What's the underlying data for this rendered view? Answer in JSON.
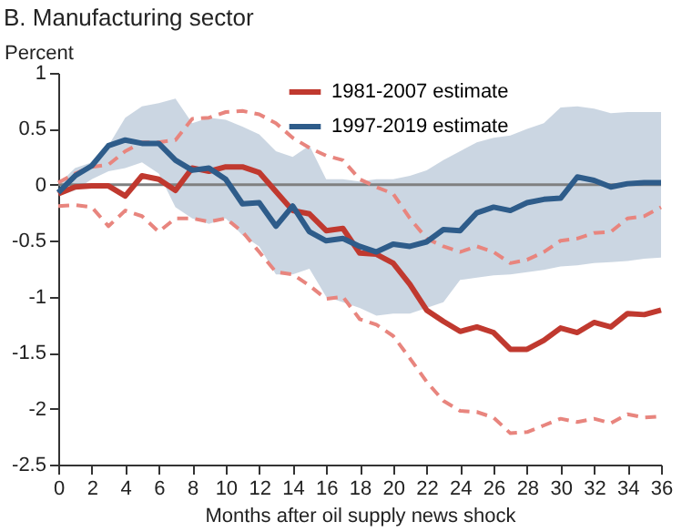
{
  "chart_data": {
    "type": "line",
    "title": "B. Manufacturing sector",
    "xlabel": "Months after oil supply news shock",
    "ylabel": "Percent",
    "x": [
      0,
      1,
      2,
      3,
      4,
      5,
      6,
      7,
      8,
      9,
      10,
      11,
      12,
      13,
      14,
      15,
      16,
      17,
      18,
      19,
      20,
      21,
      22,
      23,
      24,
      25,
      26,
      27,
      28,
      29,
      30,
      31,
      32,
      33,
      34,
      35,
      36
    ],
    "series": [
      {
        "color": "#e8857e",
        "line_style": "dashed",
        "values": [
          0.02,
          0.1,
          0.16,
          0.18,
          0.3,
          0.38,
          0.38,
          0.4,
          0.59,
          0.6,
          0.65,
          0.66,
          0.63,
          0.55,
          0.42,
          0.33,
          0.26,
          0.22,
          0.05,
          -0.02,
          -0.08,
          -0.3,
          -0.48,
          -0.55,
          -0.6,
          -0.55,
          -0.6,
          -0.7,
          -0.67,
          -0.6,
          -0.5,
          -0.48,
          -0.43,
          -0.42,
          -0.3,
          -0.28,
          -0.2
        ]
      },
      {
        "color": "#e8857e",
        "line_style": "dashed",
        "values": [
          -0.19,
          -0.18,
          -0.2,
          -0.37,
          -0.23,
          -0.28,
          -0.42,
          -0.3,
          -0.3,
          -0.33,
          -0.3,
          -0.42,
          -0.6,
          -0.78,
          -0.8,
          -0.9,
          -1.02,
          -1.0,
          -1.2,
          -1.25,
          -1.35,
          -1.55,
          -1.76,
          -1.93,
          -2.02,
          -2.03,
          -2.08,
          -2.22,
          -2.21,
          -2.15,
          -2.09,
          -2.12,
          -2.09,
          -2.13,
          -2.05,
          -2.08,
          -2.07
        ]
      },
      {
        "name": "1981-2007 estimate",
        "color": "#c0392f",
        "line_style": "solid",
        "values": [
          -0.08,
          -0.02,
          -0.01,
          -0.01,
          -0.1,
          0.08,
          0.05,
          -0.05,
          0.15,
          0.12,
          0.16,
          0.16,
          0.11,
          -0.06,
          -0.23,
          -0.26,
          -0.41,
          -0.39,
          -0.61,
          -0.62,
          -0.7,
          -0.89,
          -1.12,
          -1.22,
          -1.31,
          -1.27,
          -1.32,
          -1.47,
          -1.47,
          -1.39,
          -1.28,
          -1.32,
          -1.23,
          -1.27,
          -1.15,
          -1.16,
          -1.12
        ]
      },
      {
        "name": "1997-2019 estimate",
        "color": "#2e5c8a",
        "line_style": "solid",
        "values": [
          -0.07,
          0.08,
          0.17,
          0.35,
          0.4,
          0.37,
          0.37,
          0.22,
          0.13,
          0.15,
          0.05,
          -0.17,
          -0.16,
          -0.37,
          -0.19,
          -0.42,
          -0.5,
          -0.48,
          -0.55,
          -0.6,
          -0.53,
          -0.55,
          -0.51,
          -0.4,
          -0.41,
          -0.25,
          -0.2,
          -0.23,
          -0.16,
          -0.13,
          -0.12,
          0.07,
          0.04,
          -0.02,
          0.01,
          0.02,
          0.02
        ],
        "lower": [
          -0.1,
          -0.05,
          0.05,
          0.12,
          0.15,
          0.2,
          0.1,
          -0.2,
          -0.3,
          -0.35,
          -0.3,
          -0.45,
          -0.55,
          -0.8,
          -0.8,
          -0.75,
          -1.0,
          -1.05,
          -1.1,
          -1.17,
          -1.15,
          -1.15,
          -1.1,
          -1.05,
          -0.85,
          -0.83,
          -0.81,
          -0.8,
          -0.78,
          -0.76,
          -0.73,
          -0.72,
          -0.7,
          -0.69,
          -0.68,
          -0.66,
          -0.65
        ],
        "upper": [
          0.0,
          0.15,
          0.2,
          0.35,
          0.6,
          0.7,
          0.73,
          0.77,
          0.55,
          0.6,
          0.58,
          0.52,
          0.45,
          0.3,
          0.25,
          0.35,
          0.05,
          0.05,
          0.03,
          0.05,
          0.05,
          0.08,
          0.13,
          0.22,
          0.3,
          0.38,
          0.42,
          0.44,
          0.5,
          0.55,
          0.69,
          0.7,
          0.68,
          0.64,
          0.65,
          0.65,
          0.65
        ]
      }
    ],
    "xlim": [
      0,
      36
    ],
    "xticks": [
      0,
      2,
      4,
      6,
      8,
      10,
      12,
      14,
      16,
      18,
      20,
      22,
      24,
      26,
      28,
      30,
      32,
      34,
      36
    ],
    "ylim": [
      -2.5,
      1
    ],
    "yticks": [
      -2.5,
      -2,
      -1.5,
      -1,
      -0.5,
      0,
      0.5,
      1
    ],
    "ref_lines": [
      {
        "axis": "y",
        "value": 0,
        "color": "#808080"
      }
    ],
    "legend": "top right",
    "grid": false
  }
}
